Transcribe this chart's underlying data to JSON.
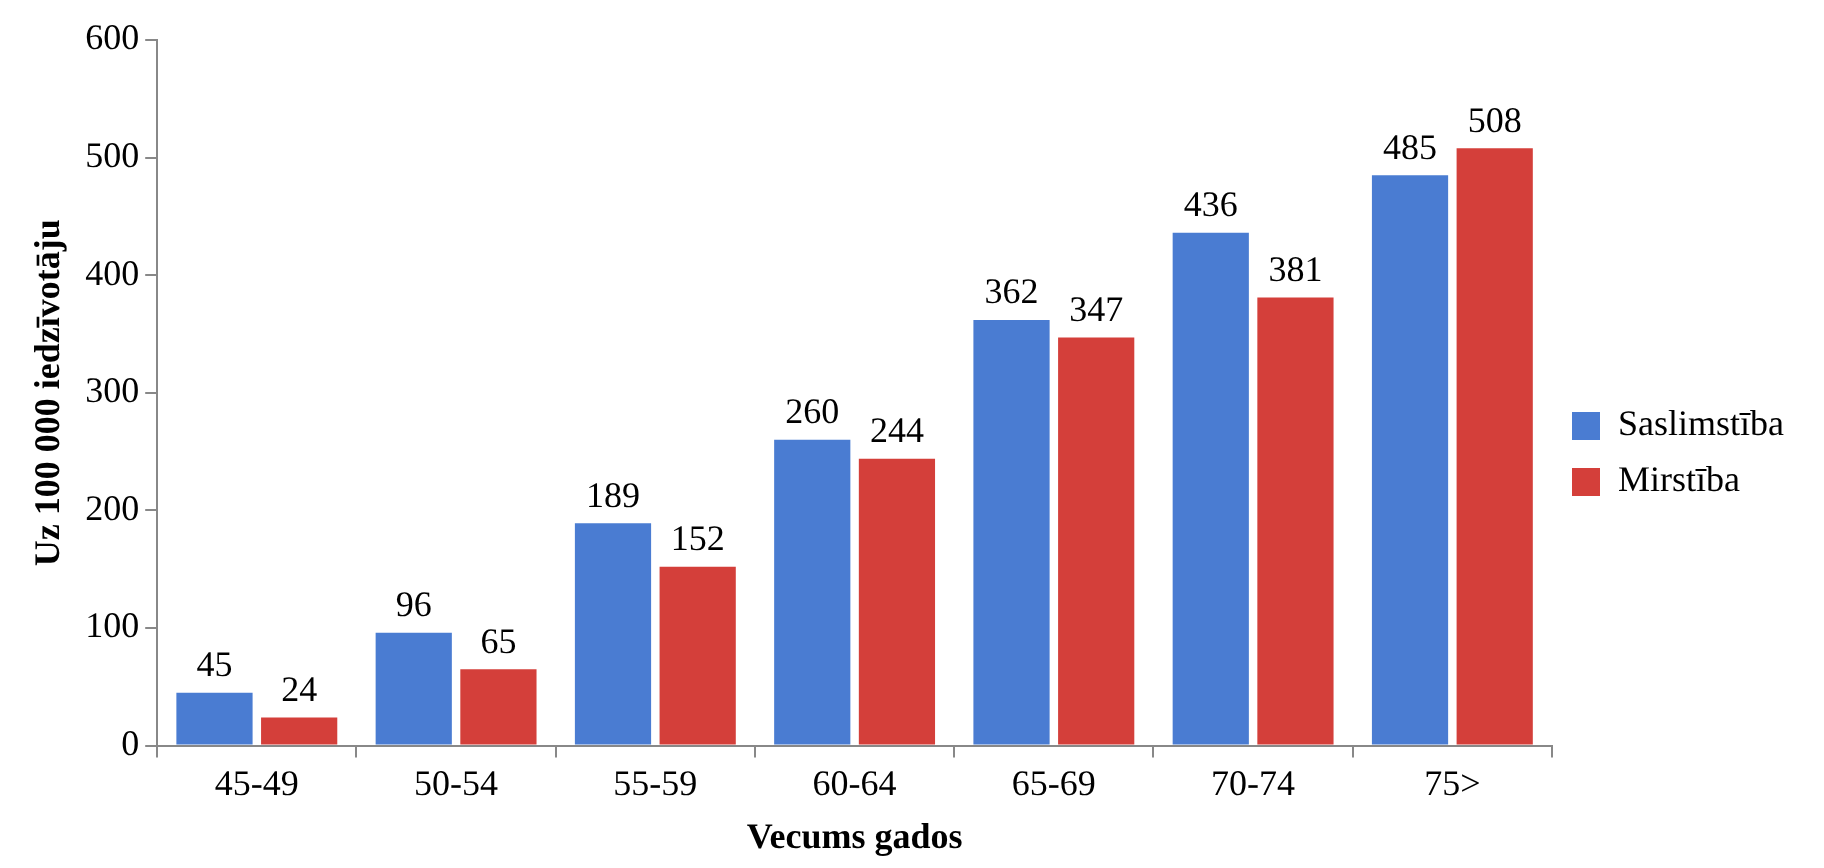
{
  "chart_data": {
    "type": "bar",
    "xlabel": "Vecums gados",
    "ylabel": "Uz 100 000 iedzīvotāju",
    "categories": [
      "45-49",
      "50-54",
      "55-59",
      "60-64",
      "65-69",
      "70-74",
      "75>"
    ],
    "series": [
      {
        "name": "Saslimstība",
        "color": "#4a7cd2",
        "values": [
          45,
          96,
          189,
          260,
          362,
          436,
          485
        ]
      },
      {
        "name": "Mirstība",
        "color": "#d43f3a",
        "values": [
          24,
          65,
          152,
          244,
          347,
          381,
          508
        ]
      }
    ],
    "ylim": [
      0,
      600
    ],
    "yticks": [
      0,
      100,
      200,
      300,
      400,
      500,
      600
    ],
    "grid": false,
    "legend": "right",
    "data_labels": true
  }
}
